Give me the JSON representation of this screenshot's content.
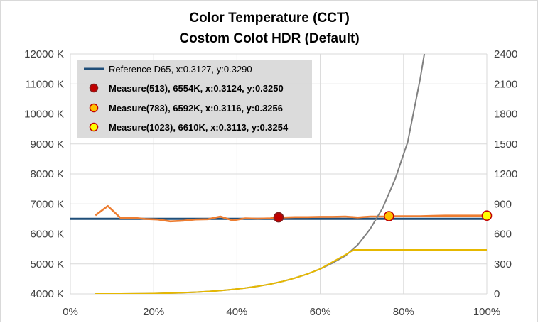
{
  "chart_data": {
    "type": "line",
    "title": "Color Temperature (CCT)",
    "subtitle": "Costom Colot HDR (Default)",
    "y_left": {
      "ylim": [
        4000,
        12000
      ],
      "ticks": [
        4000,
        5000,
        6000,
        7000,
        8000,
        9000,
        10000,
        11000,
        12000
      ],
      "tick_labels": [
        "4000 K",
        "5000 K",
        "6000 K",
        "7000 K",
        "8000 K",
        "9000 K",
        "10000 K",
        "11000 K",
        "12000 K"
      ]
    },
    "y_right": {
      "ylim": [
        0,
        2400
      ],
      "ticks": [
        0,
        300,
        600,
        900,
        1200,
        1500,
        1800,
        2100,
        2400
      ],
      "tick_labels": [
        "0",
        "300",
        "600",
        "900",
        "1200",
        "1500",
        "1800",
        "2100",
        "2400"
      ]
    },
    "x_axis": {
      "xlim": [
        0,
        100
      ],
      "ticks": [
        0,
        20,
        40,
        60,
        80,
        100
      ],
      "tick_labels": [
        "0%",
        "20%",
        "40%",
        "60%",
        "80%",
        "100%"
      ]
    },
    "grid": true,
    "legend_position": "top-left",
    "series": [
      {
        "name": "Reference D65, x:0.3127, y:0.3290",
        "color": "#1f4e79",
        "axis": "left",
        "x": [
          0,
          100
        ],
        "y": [
          6504,
          6504
        ]
      },
      {
        "name": "",
        "color": "#ed7d31",
        "axis": "left",
        "x": [
          6,
          9,
          12,
          15,
          18,
          21,
          24,
          27,
          30,
          33,
          36,
          39,
          42,
          45,
          48,
          51,
          54,
          57,
          60,
          63,
          66,
          69,
          72,
          75,
          78,
          81,
          84,
          87,
          90,
          93,
          96,
          100
        ],
        "y": [
          6620,
          6930,
          6540,
          6540,
          6500,
          6480,
          6420,
          6440,
          6480,
          6490,
          6580,
          6450,
          6520,
          6510,
          6520,
          6550,
          6560,
          6560,
          6570,
          6570,
          6580,
          6550,
          6580,
          6580,
          6590,
          6590,
          6590,
          6600,
          6610,
          6610,
          6610,
          6610
        ]
      },
      {
        "name": "",
        "color": "#808080",
        "axis": "right",
        "x": [
          6,
          9,
          12,
          15,
          18,
          21,
          24,
          27,
          30,
          33,
          36,
          39,
          42,
          45,
          48,
          51,
          54,
          57,
          60,
          63,
          66,
          69,
          72,
          75,
          78,
          81,
          84,
          85
        ],
        "y": [
          0,
          0,
          0,
          1,
          2,
          4,
          8,
          12,
          17,
          24,
          33,
          44,
          58,
          76,
          98,
          126,
          160,
          200,
          250,
          310,
          380,
          490,
          650,
          860,
          1150,
          1520,
          2150,
          2400
        ]
      },
      {
        "name": "",
        "color": "#e6b800",
        "axis": "right",
        "x": [
          6,
          9,
          12,
          15,
          18,
          21,
          24,
          27,
          30,
          33,
          36,
          39,
          42,
          45,
          48,
          51,
          54,
          57,
          60,
          63,
          66,
          68,
          72,
          76,
          80,
          84,
          88,
          92,
          96,
          100
        ],
        "y": [
          0,
          0,
          0,
          1,
          2,
          4,
          8,
          12,
          17,
          24,
          33,
          44,
          58,
          76,
          98,
          126,
          160,
          200,
          250,
          320,
          390,
          440,
          440,
          440,
          440,
          440,
          440,
          440,
          440,
          440
        ]
      }
    ],
    "markers": [
      {
        "name": "Measure(513), 6554K, x:0.3124, y:0.3250",
        "x": 50,
        "y": 6554,
        "fill": "#c00000",
        "stroke": "#7f1f1f"
      },
      {
        "name": "Measure(783), 6592K, x:0.3116, y:0.3256",
        "x": 76.5,
        "y": 6592,
        "fill": "#ffc000",
        "stroke": "#c00000"
      },
      {
        "name": "Measure(1023), 6610K, x:0.3113, y:0.3254",
        "x": 100,
        "y": 6610,
        "fill": "#ffff00",
        "stroke": "#c00000"
      }
    ]
  }
}
